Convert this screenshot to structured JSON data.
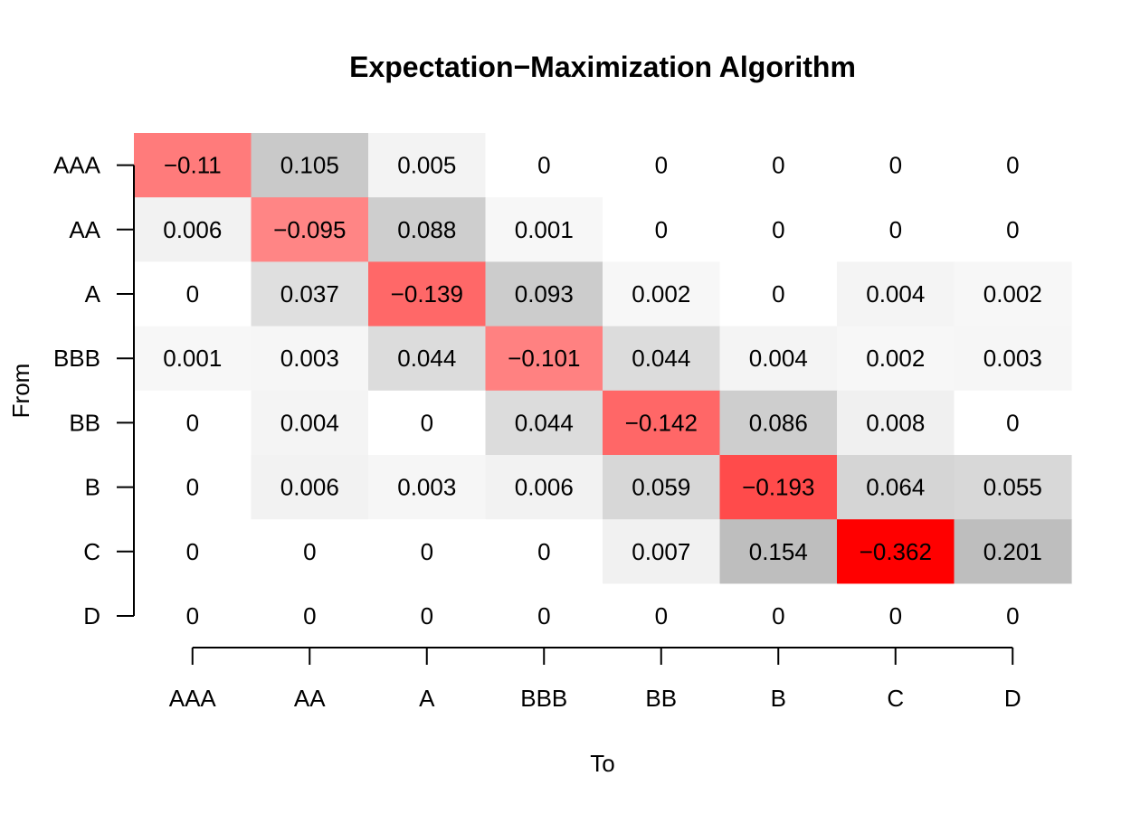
{
  "chart_data": {
    "type": "heatmap",
    "title": "Expectation−Maximization Algorithm",
    "xlabel": "To",
    "ylabel": "From",
    "rows": [
      "AAA",
      "AA",
      "A",
      "BBB",
      "BB",
      "B",
      "C",
      "D"
    ],
    "columns": [
      "AAA",
      "AA",
      "A",
      "BBB",
      "BB",
      "B",
      "C",
      "D"
    ],
    "values": [
      [
        -0.11,
        0.105,
        0.005,
        0,
        0,
        0,
        0,
        0
      ],
      [
        0.006,
        -0.095,
        0.088,
        0.001,
        0,
        0,
        0,
        0
      ],
      [
        0,
        0.037,
        -0.139,
        0.093,
        0.002,
        0,
        0.004,
        0.002
      ],
      [
        0.001,
        0.003,
        0.044,
        -0.101,
        0.044,
        0.004,
        0.002,
        0.003
      ],
      [
        0,
        0.004,
        0,
        0.044,
        -0.142,
        0.086,
        0.008,
        0
      ],
      [
        0,
        0.006,
        0.003,
        0.006,
        0.059,
        -0.193,
        0.064,
        0.055
      ],
      [
        0,
        0,
        0,
        0,
        0.007,
        0.154,
        -0.362,
        0.201
      ],
      [
        0,
        0,
        0,
        0,
        0,
        0,
        0,
        0
      ]
    ],
    "labels": [
      [
        "−0.11",
        "0.105",
        "0.005",
        "0",
        "0",
        "0",
        "0",
        "0"
      ],
      [
        "0.006",
        "−0.095",
        "0.088",
        "0.001",
        "0",
        "0",
        "0",
        "0"
      ],
      [
        "0",
        "0.037",
        "−0.139",
        "0.093",
        "0.002",
        "0",
        "0.004",
        "0.002"
      ],
      [
        "0.001",
        "0.003",
        "0.044",
        "−0.101",
        "0.044",
        "0.004",
        "0.002",
        "0.003"
      ],
      [
        "0",
        "0.004",
        "0",
        "0.044",
        "−0.142",
        "0.086",
        "0.008",
        "0"
      ],
      [
        "0",
        "0.006",
        "0.003",
        "0.006",
        "0.059",
        "−0.193",
        "0.064",
        "0.055"
      ],
      [
        "0",
        "0",
        "0",
        "0",
        "0.007",
        "0.154",
        "−0.362",
        "0.201"
      ],
      [
        "0",
        "0",
        "0",
        "0",
        "0",
        "0",
        "0",
        "0"
      ]
    ],
    "colors": {
      "negative_max": "#ff0000",
      "positive_max": "#bebebe",
      "zero": "#ffffff"
    }
  }
}
